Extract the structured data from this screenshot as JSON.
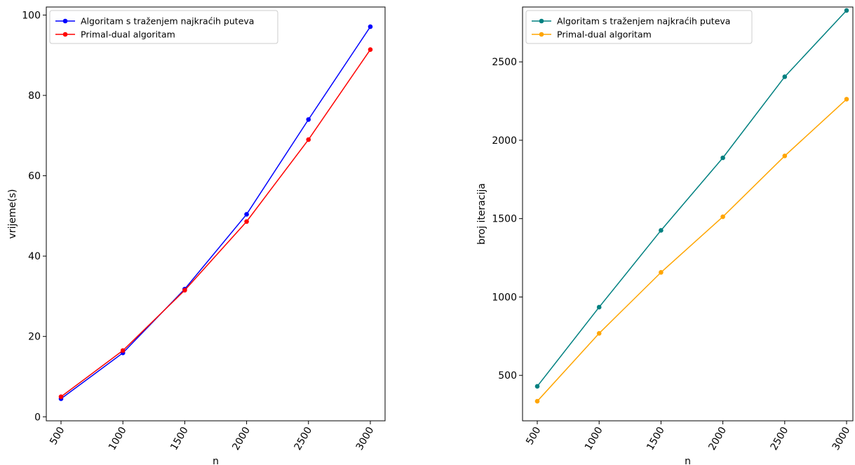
{
  "chart_data": [
    {
      "type": "line",
      "xlabel": "n",
      "ylabel": "vrijeme(s)",
      "x": [
        500,
        1000,
        1500,
        2000,
        2500,
        3000
      ],
      "xticks": [
        "500",
        "1000",
        "1500",
        "2000",
        "2500",
        "3000"
      ],
      "yticks": [
        0,
        20,
        40,
        60,
        80,
        100
      ],
      "ylim": [
        -1,
        102
      ],
      "legend_position": "top-left",
      "grid": false,
      "series": [
        {
          "name": "Algoritam s traženjem najkraćih puteva",
          "color": "#0000ff",
          "values": [
            4.5,
            15.9,
            31.8,
            50.4,
            74.0,
            97.1
          ]
        },
        {
          "name": "Primal-dual algoritam",
          "color": "#ff0000",
          "values": [
            5.0,
            16.5,
            31.5,
            48.6,
            69.0,
            91.4
          ]
        }
      ]
    },
    {
      "type": "line",
      "xlabel": "n",
      "ylabel": "broj iteracija",
      "x": [
        500,
        1000,
        1500,
        2000,
        2500,
        3000
      ],
      "xticks": [
        "500",
        "1000",
        "1500",
        "2000",
        "2500",
        "3000"
      ],
      "yticks": [
        500,
        1000,
        1500,
        2000,
        2500
      ],
      "ylim": [
        210,
        2850
      ],
      "legend_position": "top-left",
      "grid": false,
      "series": [
        {
          "name": "Algoritam s traženjem najkraćih puteva",
          "color": "#008080",
          "values": [
            430,
            935,
            1425,
            1888,
            2405,
            2828
          ]
        },
        {
          "name": "Primal-dual algoritam",
          "color": "#ffa500",
          "values": [
            335,
            768,
            1157,
            1512,
            1900,
            2262
          ]
        }
      ]
    }
  ]
}
